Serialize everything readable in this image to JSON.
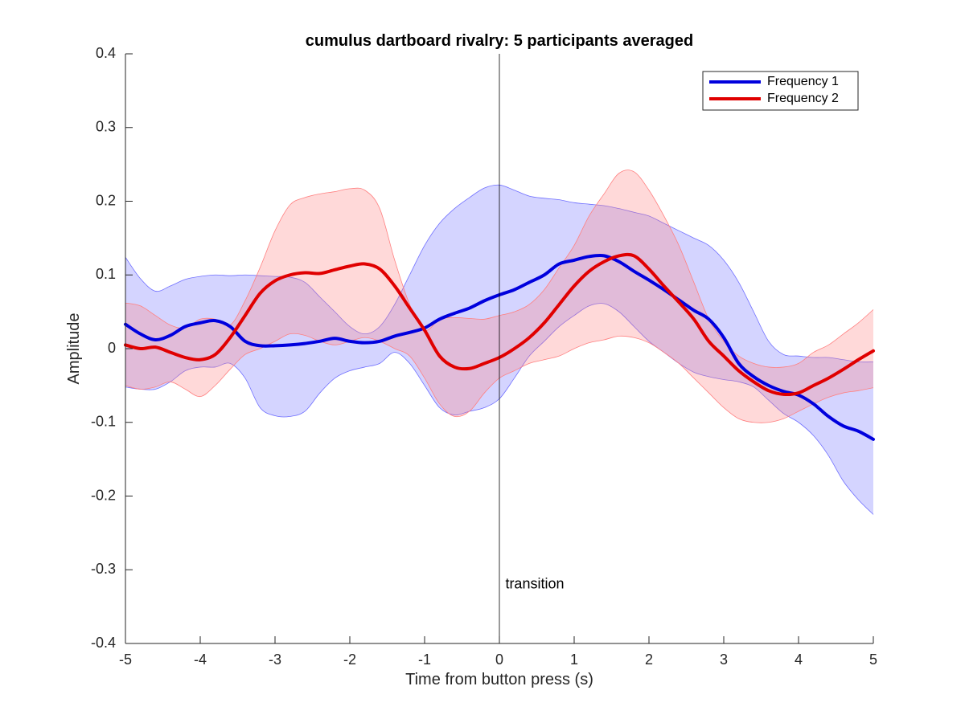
{
  "chart_data": {
    "type": "line",
    "title": "cumulus dartboard rivalry: 5 participants averaged",
    "xlabel": "Time from button press (s)",
    "ylabel": "Amplitude",
    "xlim": [
      -5,
      5
    ],
    "ylim": [
      -0.4,
      0.4
    ],
    "xticks": [
      -5,
      -4,
      -3,
      -2,
      -1,
      0,
      1,
      2,
      3,
      4,
      5
    ],
    "yticks": [
      -0.4,
      -0.3,
      -0.2,
      -0.1,
      0,
      0.1,
      0.2,
      0.3,
      0.4
    ],
    "grid": false,
    "legend_position": "top-right",
    "annotations": [
      {
        "text": "transition",
        "x": 0.08,
        "y": -0.32,
        "vline_x": 0
      }
    ],
    "series": [
      {
        "name": "Frequency 1",
        "color": "#0000dd",
        "band_color": "#6f6fff",
        "x": [
          -5,
          -4.8,
          -4.6,
          -4.4,
          -4.2,
          -4,
          -3.8,
          -3.6,
          -3.4,
          -3.2,
          -3,
          -2.8,
          -2.6,
          -2.4,
          -2.2,
          -2,
          -1.8,
          -1.6,
          -1.4,
          -1.2,
          -1,
          -0.8,
          -0.6,
          -0.4,
          -0.2,
          0,
          0.2,
          0.4,
          0.6,
          0.8,
          1,
          1.2,
          1.4,
          1.6,
          1.8,
          2,
          2.2,
          2.4,
          2.6,
          2.8,
          3,
          3.2,
          3.4,
          3.6,
          3.8,
          4,
          4.2,
          4.4,
          4.6,
          4.8,
          5
        ],
        "mean": [
          0.033,
          0.02,
          0.012,
          0.018,
          0.03,
          0.035,
          0.038,
          0.03,
          0.01,
          0.004,
          0.004,
          0.005,
          0.007,
          0.01,
          0.014,
          0.01,
          0.008,
          0.01,
          0.017,
          0.022,
          0.028,
          0.04,
          0.048,
          0.055,
          0.065,
          0.073,
          0.08,
          0.09,
          0.1,
          0.115,
          0.12,
          0.125,
          0.126,
          0.118,
          0.105,
          0.093,
          0.08,
          0.066,
          0.052,
          0.04,
          0.015,
          -0.02,
          -0.038,
          -0.05,
          -0.058,
          -0.063,
          -0.075,
          -0.092,
          -0.105,
          -0.112,
          -0.123
        ],
        "upper": [
          0.124,
          0.095,
          0.078,
          0.085,
          0.094,
          0.098,
          0.1,
          0.099,
          0.1,
          0.099,
          0.098,
          0.097,
          0.09,
          0.07,
          0.05,
          0.03,
          0.02,
          0.03,
          0.06,
          0.1,
          0.14,
          0.17,
          0.19,
          0.205,
          0.218,
          0.222,
          0.215,
          0.207,
          0.204,
          0.202,
          0.198,
          0.196,
          0.194,
          0.19,
          0.185,
          0.18,
          0.17,
          0.16,
          0.15,
          0.14,
          0.12,
          0.09,
          0.05,
          0.01,
          -0.008,
          -0.01,
          -0.012,
          -0.012,
          -0.015,
          -0.018,
          -0.018
        ],
        "lower": [
          -0.052,
          -0.055,
          -0.055,
          -0.045,
          -0.03,
          -0.025,
          -0.025,
          -0.02,
          -0.04,
          -0.08,
          -0.091,
          -0.092,
          -0.085,
          -0.06,
          -0.04,
          -0.03,
          -0.025,
          -0.02,
          -0.005,
          -0.02,
          -0.05,
          -0.08,
          -0.09,
          -0.085,
          -0.08,
          -0.068,
          -0.04,
          -0.01,
          0.01,
          0.03,
          0.045,
          0.058,
          0.061,
          0.05,
          0.03,
          0.01,
          -0.005,
          -0.02,
          -0.032,
          -0.038,
          -0.042,
          -0.045,
          -0.052,
          -0.07,
          -0.088,
          -0.1,
          -0.118,
          -0.145,
          -0.18,
          -0.205,
          -0.225
        ]
      },
      {
        "name": "Frequency 2",
        "color": "#e00000",
        "band_color": "#ff8080",
        "x": [
          -5,
          -4.8,
          -4.6,
          -4.4,
          -4.2,
          -4,
          -3.8,
          -3.6,
          -3.4,
          -3.2,
          -3,
          -2.8,
          -2.6,
          -2.4,
          -2.2,
          -2,
          -1.8,
          -1.6,
          -1.4,
          -1.2,
          -1,
          -0.8,
          -0.6,
          -0.4,
          -0.2,
          0,
          0.2,
          0.4,
          0.6,
          0.8,
          1,
          1.2,
          1.4,
          1.6,
          1.8,
          2,
          2.2,
          2.4,
          2.6,
          2.8,
          3,
          3.2,
          3.4,
          3.6,
          3.8,
          4,
          4.2,
          4.4,
          4.6,
          4.8,
          5
        ],
        "mean": [
          0.005,
          0.0,
          0.002,
          -0.005,
          -0.012,
          -0.015,
          -0.008,
          0.015,
          0.045,
          0.075,
          0.092,
          0.1,
          0.103,
          0.102,
          0.107,
          0.112,
          0.115,
          0.108,
          0.085,
          0.055,
          0.025,
          -0.01,
          -0.025,
          -0.027,
          -0.02,
          -0.012,
          0.0,
          0.015,
          0.035,
          0.06,
          0.085,
          0.105,
          0.118,
          0.126,
          0.126,
          0.108,
          0.085,
          0.063,
          0.04,
          0.01,
          -0.01,
          -0.03,
          -0.045,
          -0.057,
          -0.062,
          -0.06,
          -0.05,
          -0.04,
          -0.028,
          -0.015,
          -0.003
        ],
        "upper": [
          0.062,
          0.058,
          0.045,
          0.032,
          0.028,
          0.04,
          0.04,
          0.032,
          0.065,
          0.11,
          0.16,
          0.195,
          0.205,
          0.21,
          0.213,
          0.217,
          0.215,
          0.19,
          0.12,
          0.06,
          0.025,
          0.04,
          0.042,
          0.041,
          0.04,
          0.045,
          0.05,
          0.06,
          0.08,
          0.11,
          0.14,
          0.18,
          0.21,
          0.238,
          0.24,
          0.215,
          0.18,
          0.14,
          0.09,
          0.04,
          0.01,
          -0.01,
          -0.02,
          -0.025,
          -0.025,
          -0.02,
          -0.005,
          0.005,
          0.02,
          0.035,
          0.053
        ],
        "lower": [
          -0.05,
          -0.055,
          -0.052,
          -0.045,
          -0.055,
          -0.065,
          -0.05,
          -0.028,
          -0.008,
          0.0,
          0.01,
          0.02,
          0.018,
          0.01,
          0.005,
          0.01,
          0.015,
          0.01,
          0.0,
          -0.01,
          -0.04,
          -0.075,
          -0.092,
          -0.085,
          -0.06,
          -0.04,
          -0.03,
          -0.02,
          -0.015,
          -0.01,
          0.0,
          0.008,
          0.012,
          0.017,
          0.015,
          0.008,
          -0.005,
          -0.02,
          -0.04,
          -0.06,
          -0.08,
          -0.095,
          -0.1,
          -0.1,
          -0.095,
          -0.085,
          -0.075,
          -0.066,
          -0.06,
          -0.057,
          -0.053
        ]
      }
    ]
  }
}
